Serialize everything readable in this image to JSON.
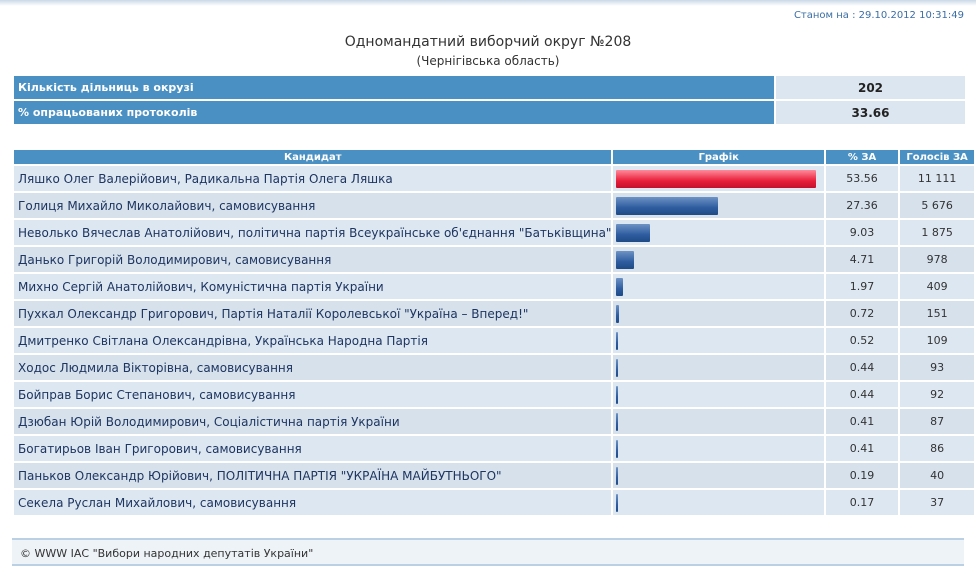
{
  "header": {
    "timestamp": "Станом на : 29.10.2012 10:31:49",
    "title": "Одномандатний виборчий округ №208",
    "subtitle": "(Чернігівська область)"
  },
  "summary": [
    {
      "label": "Кількість дільниць в окрузі",
      "value": "202"
    },
    {
      "label": "% опрацьованих протоколів",
      "value": "33.66"
    }
  ],
  "columns": {
    "candidate": "Кандидат",
    "graph": "Графік",
    "pct": "% ЗА",
    "votes": "Голосів ЗА"
  },
  "candidates": [
    {
      "name": "Ляшко Олег Валерійович",
      "party": ", Радикальна Партія Олега Ляшка",
      "pct": 53.56,
      "votes": "11 111"
    },
    {
      "name": "Голиця Михайло Миколайович",
      "party": ", самовисування",
      "pct": 27.36,
      "votes": "5 676"
    },
    {
      "name": "Неволько Вячеслав Анатолійович",
      "party": ", політична партія Всеукраїнське об'єднання \"Батьківщина\"",
      "pct": 9.03,
      "votes": "1 875"
    },
    {
      "name": "Данько Григорій Володимирович",
      "party": ", самовисування",
      "pct": 4.71,
      "votes": "978"
    },
    {
      "name": "Михно Сергій Анатолійович",
      "party": ", Комуністична партія України",
      "pct": 1.97,
      "votes": "409"
    },
    {
      "name": "Пухкал Олександр Григорович",
      "party": ", Партія Наталії Королевської \"Україна – Вперед!\"",
      "pct": 0.72,
      "votes": "151"
    },
    {
      "name": "Дмитренко Світлана Олександрівна",
      "party": ", Українська Народна Партія",
      "pct": 0.52,
      "votes": "109"
    },
    {
      "name": "Ходос Людмила Вікторівна",
      "party": ", самовисування",
      "pct": 0.44,
      "votes": "93"
    },
    {
      "name": "Бойправ Борис Степанович",
      "party": ", самовисування",
      "pct": 0.44,
      "votes": "92"
    },
    {
      "name": "Дзюбан Юрій Володимирович",
      "party": ", Соціалістична партія України",
      "pct": 0.41,
      "votes": "87"
    },
    {
      "name": "Богатирьов Іван Григорович",
      "party": ", самовисування",
      "pct": 0.41,
      "votes": "86"
    },
    {
      "name": "Паньков Олександр Юрійович",
      "party": ", ПОЛІТИЧНА ПАРТІЯ \"УКРАЇНА МАЙБУТНЬОГО\"",
      "pct": 0.19,
      "votes": "40"
    },
    {
      "name": "Секела Руслан Михайлович",
      "party": ", самовисування",
      "pct": 0.17,
      "votes": "37"
    }
  ],
  "footer": {
    "text": "© WWW ІАС \"Вибори народних депутатів України\""
  }
}
